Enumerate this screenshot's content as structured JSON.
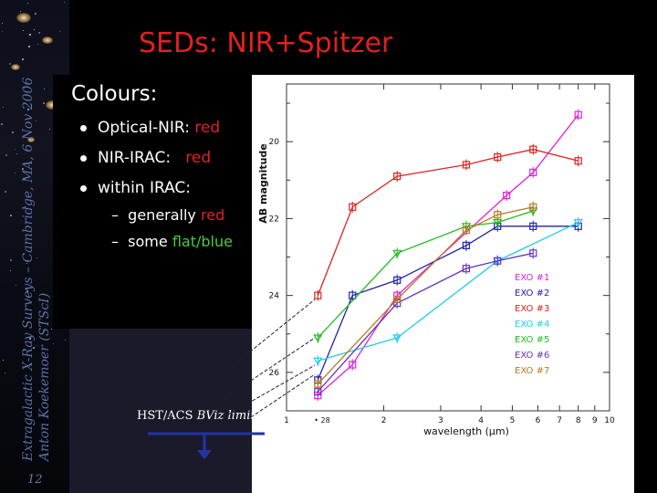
{
  "title": "SEDs: NIR+Spitzer",
  "side_text": {
    "line1": "Extragalactic X-Ray Surveys – Cambridge, MA, 6 Nov 2006",
    "line2": "Anton Koekemoer (STScI)"
  },
  "page_number": "12",
  "colours": {
    "heading": "Colours:",
    "bullets": [
      {
        "label": "Optical-NIR:",
        "value": "red"
      },
      {
        "label": "NIR-IRAC:",
        "value": "red"
      },
      {
        "label": "within IRAC:",
        "value": ""
      }
    ],
    "sub_bullets": [
      {
        "dash": "–",
        "text": "generally",
        "value": "red"
      },
      {
        "dash": "–",
        "text": "some",
        "value": "flat/blue"
      }
    ]
  },
  "hst_label": {
    "text": "HST/ACS",
    "italic": "BViz",
    "suffix": "limits"
  },
  "colors": {
    "title": "#e22020",
    "red": "#e22020",
    "green": "#44cc44",
    "blue": "#4488ff"
  },
  "chart_data": {
    "type": "line",
    "xlabel": "wavelength (μm)",
    "ylabel": "AB magnitude",
    "x_scale": "log",
    "xlim": [
      1,
      10
    ],
    "ylim": [
      27,
      18.5
    ],
    "x_ticks": [
      "1",
      "2",
      "3",
      "4",
      "5",
      "6",
      "7",
      "8",
      "9",
      "10"
    ],
    "y_ticks": [
      "20",
      "22",
      "24",
      "26"
    ],
    "extra_label": "28",
    "series": [
      {
        "name": "EXO #1",
        "color": "#dd22dd",
        "marker": "square",
        "x": [
          1.25,
          1.6,
          2.2,
          4.8,
          5.8,
          8.0
        ],
        "y": [
          26.6,
          25.8,
          24.0,
          21.4,
          20.8,
          19.3
        ]
      },
      {
        "name": "EXO #2",
        "color": "#2222aa",
        "marker": "square",
        "x": [
          1.25,
          1.6,
          2.2,
          3.6,
          4.5,
          5.8,
          8.0
        ],
        "y": [
          26.2,
          24.0,
          23.6,
          22.7,
          22.2,
          22.2,
          22.2
        ]
      },
      {
        "name": "EXO #3",
        "color": "#dd2222",
        "marker": "square",
        "x": [
          1.25,
          1.6,
          2.2,
          3.6,
          4.5,
          5.8,
          8.0
        ],
        "y": [
          24.0,
          21.7,
          20.9,
          20.6,
          20.4,
          20.2,
          20.5
        ]
      },
      {
        "name": "EXO #4",
        "color": "#22ccee",
        "marker": "triangle-down",
        "x": [
          1.25,
          2.2,
          4.5,
          8.0
        ],
        "y": [
          25.7,
          25.1,
          23.1,
          22.1
        ]
      },
      {
        "name": "EXO #5",
        "color": "#22bb22",
        "marker": "triangle-down",
        "x": [
          1.25,
          2.2,
          3.6,
          4.5,
          5.8
        ],
        "y": [
          25.1,
          22.9,
          22.2,
          22.1,
          21.8
        ]
      },
      {
        "name": "EXO #6",
        "color": "#6633bb",
        "marker": "square",
        "x": [
          1.25,
          2.2,
          3.6,
          4.5,
          5.8
        ],
        "y": [
          26.5,
          24.2,
          23.3,
          23.1,
          22.9
        ]
      },
      {
        "name": "EXO #7",
        "color": "#bb7722",
        "marker": "square",
        "x": [
          1.25,
          2.2,
          3.6,
          4.5,
          5.8
        ],
        "y": [
          26.3,
          24.1,
          22.3,
          21.9,
          21.7
        ]
      }
    ]
  }
}
